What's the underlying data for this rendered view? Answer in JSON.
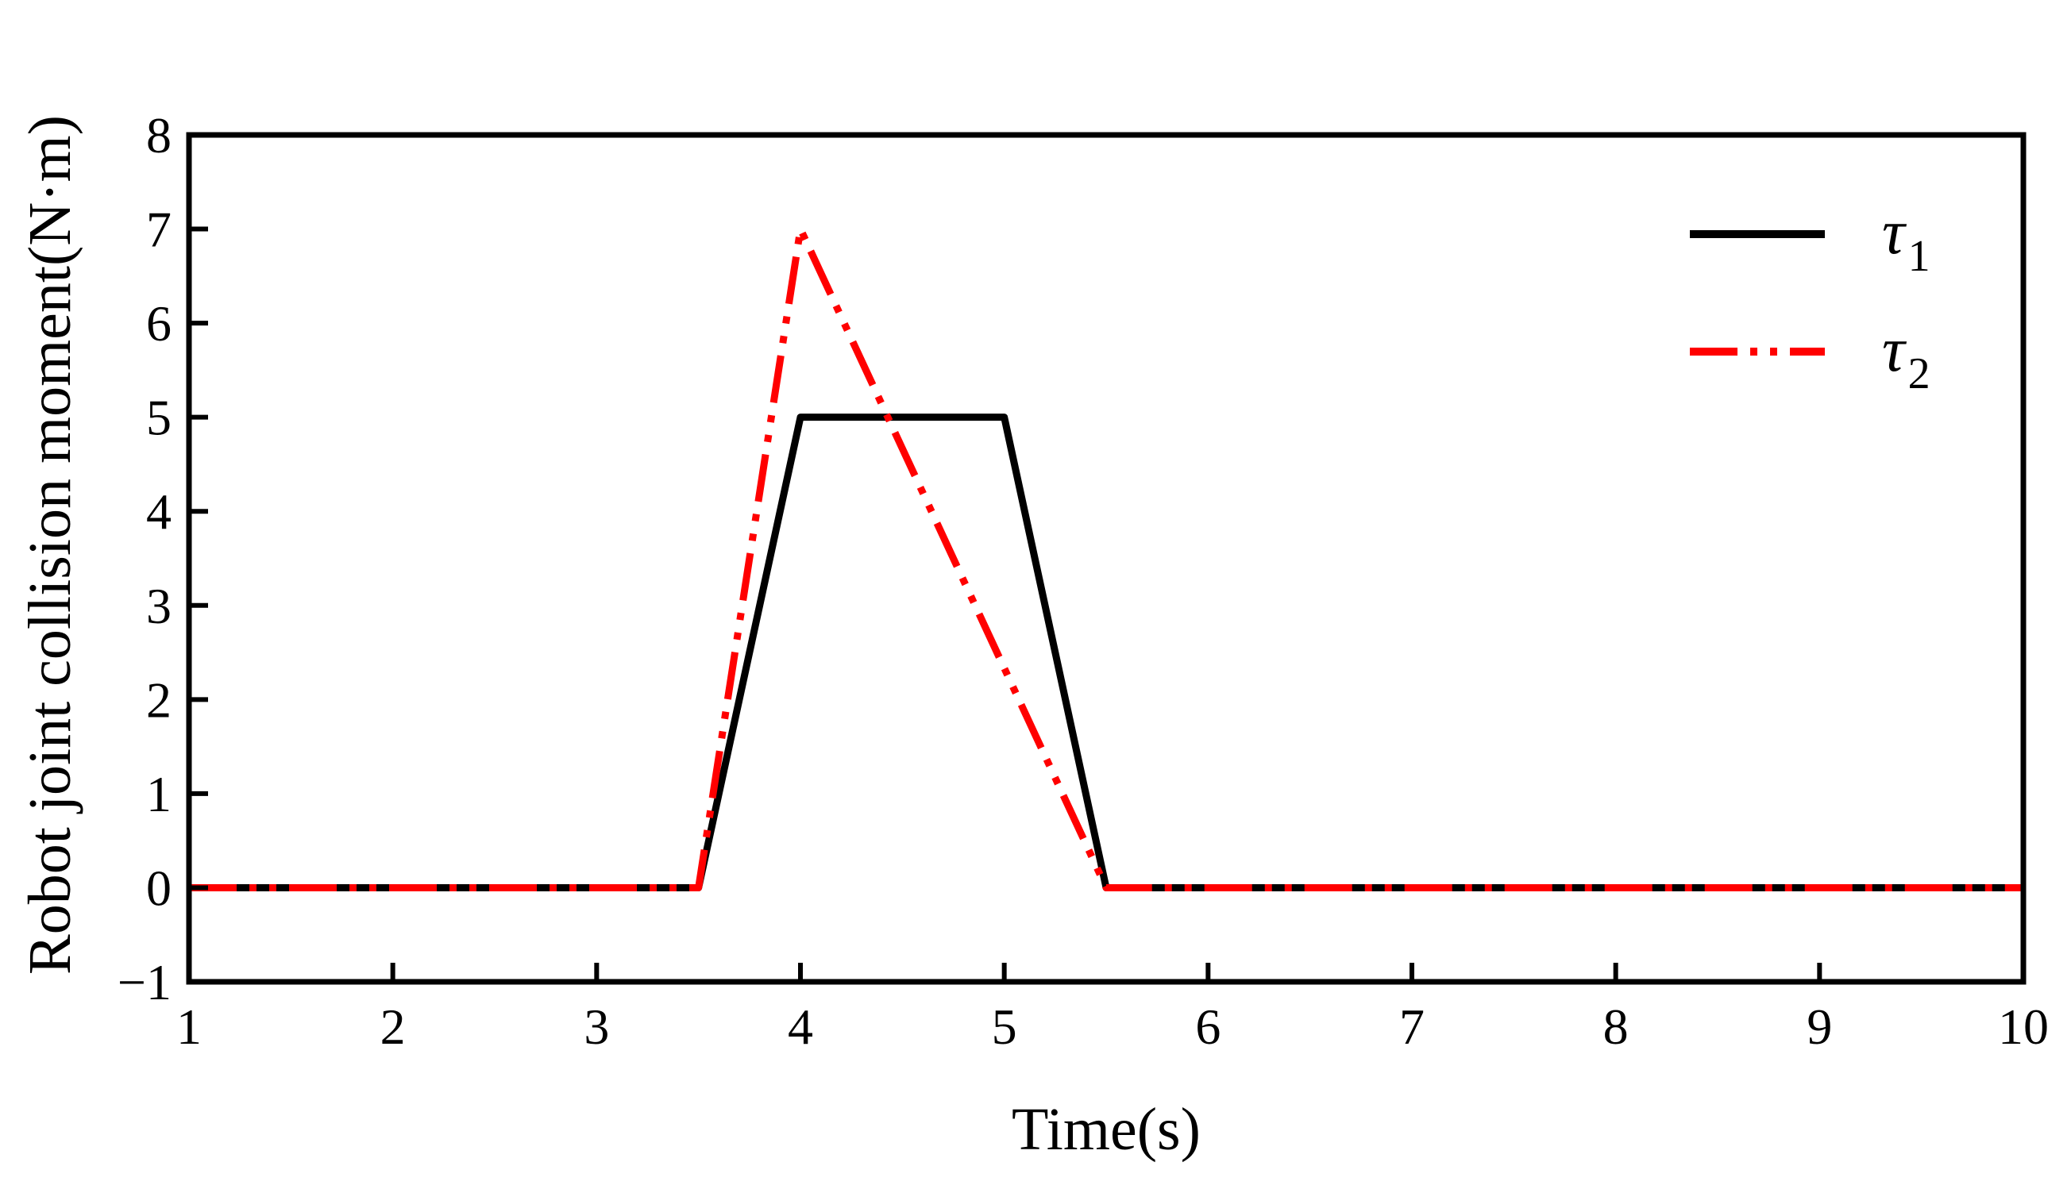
{
  "chart_data": {
    "type": "line",
    "title": "",
    "xlabel": "Time(s)",
    "ylabel": "Robot joint collision moment(N·m)",
    "xlim": [
      1,
      10
    ],
    "ylim": [
      -1,
      8
    ],
    "xticks": [
      1,
      2,
      3,
      4,
      5,
      6,
      7,
      8,
      9,
      10
    ],
    "yticks": [
      -1,
      0,
      1,
      2,
      3,
      4,
      5,
      6,
      7,
      8
    ],
    "ytick_labels": [
      "−1",
      "0",
      "1",
      "2",
      "3",
      "4",
      "5",
      "6",
      "7",
      "8"
    ],
    "grid": false,
    "legend_position": "top-right",
    "series": [
      {
        "name": "τ1",
        "symbol": "τ",
        "subscript": "1",
        "color": "#000000",
        "linestyle": "solid",
        "x": [
          1,
          3.5,
          4,
          5,
          5.5,
          10
        ],
        "y": [
          0,
          0,
          5,
          5,
          0,
          0
        ]
      },
      {
        "name": "τ2",
        "symbol": "τ",
        "subscript": "2",
        "color": "#ff0000",
        "linestyle": "dash-dot-dot",
        "x": [
          1,
          3.5,
          4,
          5.5,
          10
        ],
        "y": [
          0,
          0,
          7,
          0,
          0
        ]
      }
    ]
  }
}
